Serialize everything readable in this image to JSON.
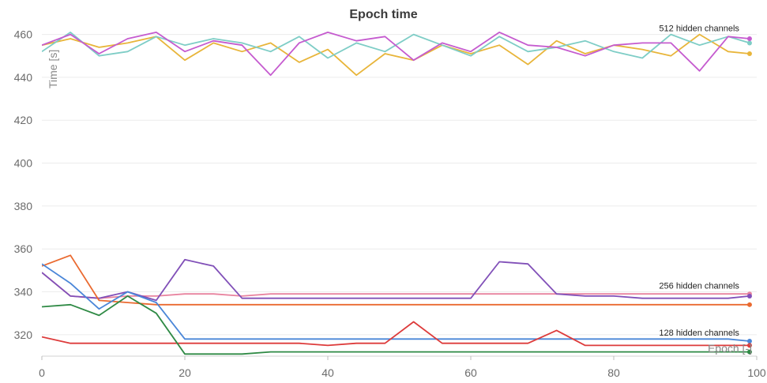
{
  "chart_data": {
    "type": "line",
    "title": "Epoch time",
    "xlabel": "Epoch [-]",
    "ylabel": "Time [s]",
    "xlim": [
      0,
      100
    ],
    "ylim": [
      310,
      465
    ],
    "x_ticks": [
      0,
      20,
      40,
      60,
      80,
      100
    ],
    "x_tick_labels": [
      "0",
      "20",
      "40",
      "60",
      "80",
      "100"
    ],
    "y_ticks": [
      320,
      340,
      360,
      380,
      400,
      420,
      440,
      460
    ],
    "y_tick_labels": [
      "320",
      "340",
      "360",
      "380",
      "400",
      "420",
      "440",
      "460"
    ],
    "grid": "horizontal",
    "x": [
      0,
      4,
      8,
      12,
      16,
      20,
      24,
      28,
      32,
      36,
      40,
      44,
      48,
      52,
      56,
      60,
      64,
      68,
      72,
      76,
      80,
      84,
      88,
      92,
      96,
      99
    ],
    "annotations": [
      {
        "text": "512 hidden channels",
        "x": 99,
        "y": 463
      },
      {
        "text": "256 hidden channels",
        "x": 99,
        "y": 343
      },
      {
        "text": "128 hidden channels",
        "x": 99,
        "y": 321
      }
    ],
    "series": [
      {
        "color": "#e8b53a",
        "values": [
          455,
          458,
          454,
          456,
          459,
          448,
          456,
          452,
          456,
          447,
          453,
          441,
          451,
          448,
          455,
          451,
          455,
          446,
          457,
          451,
          455,
          453,
          450,
          460,
          452,
          451
        ]
      },
      {
        "color": "#7ecdc6",
        "values": [
          452,
          461,
          450,
          452,
          459,
          455,
          458,
          456,
          452,
          459,
          449,
          456,
          452,
          460,
          455,
          450,
          459,
          452,
          454,
          457,
          452,
          449,
          460,
          455,
          459,
          456
        ]
      },
      {
        "color": "#c55bcf",
        "values": [
          455,
          460,
          451,
          458,
          461,
          452,
          457,
          455,
          441,
          456,
          461,
          457,
          459,
          448,
          456,
          452,
          461,
          455,
          454,
          450,
          455,
          456,
          456,
          443,
          459,
          458
        ]
      },
      {
        "color": "#e8839f",
        "values": [
          349,
          338,
          337,
          338,
          338,
          339,
          339,
          338,
          339,
          339,
          339,
          339,
          339,
          339,
          339,
          339,
          339,
          339,
          339,
          339,
          339,
          339,
          339,
          339,
          339,
          339
        ]
      },
      {
        "color": "#8150b8",
        "values": [
          349,
          338,
          337,
          340,
          336,
          355,
          352,
          337,
          337,
          337,
          337,
          337,
          337,
          337,
          337,
          337,
          354,
          353,
          339,
          338,
          338,
          337,
          337,
          337,
          337,
          338
        ]
      },
      {
        "color": "#ea6a30",
        "values": [
          352,
          357,
          336,
          335,
          334,
          334,
          334,
          334,
          334,
          334,
          334,
          334,
          334,
          334,
          334,
          334,
          334,
          334,
          334,
          334,
          334,
          334,
          334,
          334,
          334,
          334
        ]
      },
      {
        "color": "#4a86d8",
        "values": [
          353,
          344,
          332,
          340,
          335,
          318,
          318,
          318,
          318,
          318,
          318,
          318,
          318,
          318,
          318,
          318,
          318,
          318,
          318,
          318,
          318,
          318,
          318,
          318,
          318,
          317
        ]
      },
      {
        "color": "#dd3b3b",
        "values": [
          319,
          316,
          316,
          316,
          316,
          316,
          316,
          316,
          316,
          316,
          315,
          316,
          316,
          326,
          316,
          316,
          316,
          316,
          322,
          315,
          315,
          315,
          315,
          315,
          315,
          315
        ]
      },
      {
        "color": "#2f8a45",
        "values": [
          333,
          334,
          329,
          338,
          330,
          311,
          311,
          311,
          312,
          312,
          312,
          312,
          312,
          312,
          312,
          312,
          312,
          312,
          312,
          312,
          312,
          312,
          312,
          312,
          312,
          312
        ]
      }
    ]
  }
}
